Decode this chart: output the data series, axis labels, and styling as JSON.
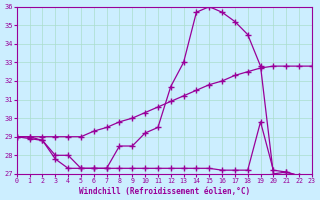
{
  "xlabel": "Windchill (Refroidissement éolien,°C)",
  "background_color": "#cceeff",
  "grid_color": "#aaddcc",
  "line_color": "#990099",
  "xlim": [
    0,
    23
  ],
  "ylim": [
    27,
    36
  ],
  "xticks": [
    0,
    1,
    2,
    3,
    4,
    5,
    6,
    7,
    8,
    9,
    10,
    11,
    12,
    13,
    14,
    15,
    16,
    17,
    18,
    19,
    20,
    21,
    22,
    23
  ],
  "yticks": [
    27,
    28,
    29,
    30,
    31,
    32,
    33,
    34,
    35,
    36
  ],
  "line1_x": [
    0,
    1,
    2,
    3,
    4,
    5,
    6,
    7,
    8,
    9,
    10,
    11,
    12,
    13,
    14,
    15,
    16,
    17,
    18,
    19,
    20,
    21,
    22,
    23
  ],
  "line1_y": [
    29.0,
    29.0,
    28.8,
    28.0,
    28.0,
    27.3,
    27.3,
    27.3,
    28.5,
    28.5,
    29.2,
    29.5,
    31.7,
    33.0,
    35.7,
    36.0,
    35.7,
    35.2,
    34.5,
    32.8,
    27.0,
    27.1,
    26.9,
    26.8
  ],
  "line2_x": [
    0,
    1,
    2,
    3,
    4,
    5,
    6,
    7,
    8,
    9,
    10,
    11,
    12,
    13,
    14,
    15,
    16,
    17,
    18,
    19,
    20,
    21,
    22,
    23
  ],
  "line2_y": [
    29.0,
    29.0,
    29.0,
    29.0,
    29.0,
    29.0,
    29.3,
    29.5,
    29.8,
    30.0,
    30.3,
    30.6,
    30.9,
    31.2,
    31.5,
    31.8,
    32.0,
    32.3,
    32.5,
    32.7,
    32.8,
    32.8,
    32.8,
    32.8
  ],
  "line3_x": [
    0,
    1,
    2,
    3,
    4,
    5,
    6,
    7,
    8,
    9,
    10,
    11,
    12,
    13,
    14,
    15,
    16,
    17,
    18,
    19,
    20,
    21,
    22,
    23
  ],
  "line3_y": [
    29.0,
    28.9,
    28.8,
    27.8,
    27.3,
    27.3,
    27.3,
    27.3,
    27.3,
    27.3,
    27.3,
    27.3,
    27.3,
    27.3,
    27.3,
    27.3,
    27.2,
    27.2,
    27.2,
    29.8,
    27.2,
    27.1,
    26.9,
    26.8
  ]
}
